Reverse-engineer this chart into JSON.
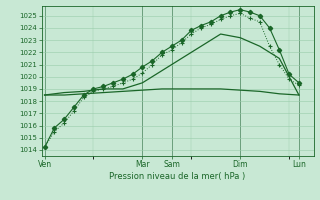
{
  "bg_color": "#c8e8d4",
  "line_color": "#1a6628",
  "grid_color": "#99ccaa",
  "vline_color": "#336644",
  "xlabel": "Pression niveau de la mer( hPa )",
  "ylim": [
    1013.5,
    1025.8
  ],
  "yticks": [
    1014,
    1015,
    1016,
    1017,
    1018,
    1019,
    1020,
    1021,
    1022,
    1023,
    1024,
    1025
  ],
  "day_labels": [
    "Ven",
    "Mar",
    "Sam",
    "Dim",
    "Lun"
  ],
  "day_positions": [
    0,
    10,
    13,
    20,
    26
  ],
  "xlim": [
    -0.3,
    27.5
  ],
  "series1_x": [
    0,
    1,
    2,
    3,
    4,
    5,
    6,
    7,
    8,
    9,
    10,
    11,
    12,
    13,
    14,
    15,
    16,
    17,
    18,
    19,
    20,
    21,
    22,
    23,
    24,
    25,
    26
  ],
  "series1_y": [
    1014.2,
    1015.8,
    1016.5,
    1017.5,
    1018.5,
    1019.0,
    1019.2,
    1019.5,
    1019.8,
    1020.2,
    1020.8,
    1021.3,
    1022.0,
    1022.5,
    1023.0,
    1023.8,
    1024.2,
    1024.5,
    1025.0,
    1025.3,
    1025.5,
    1025.3,
    1025.0,
    1024.0,
    1022.2,
    1020.2,
    1019.5
  ],
  "series2_x": [
    0,
    1,
    2,
    3,
    4,
    5,
    6,
    7,
    8,
    9,
    10,
    11,
    12,
    13,
    14,
    15,
    16,
    17,
    18,
    19,
    20,
    21,
    22,
    23,
    24,
    25,
    26
  ],
  "series2_y": [
    1014.2,
    1015.5,
    1016.2,
    1017.2,
    1018.3,
    1018.8,
    1019.0,
    1019.2,
    1019.5,
    1019.8,
    1020.3,
    1021.0,
    1021.8,
    1022.2,
    1022.8,
    1023.5,
    1024.0,
    1024.3,
    1024.7,
    1025.0,
    1025.2,
    1024.8,
    1024.5,
    1022.5,
    1021.0,
    1019.8,
    1019.3
  ],
  "series3_x": [
    0,
    2,
    4,
    6,
    8,
    10,
    12,
    14,
    16,
    18,
    20,
    22,
    24,
    26
  ],
  "series3_y": [
    1018.5,
    1018.7,
    1018.8,
    1019.0,
    1019.0,
    1019.5,
    1020.5,
    1021.5,
    1022.5,
    1023.5,
    1023.2,
    1022.5,
    1021.5,
    1018.5
  ],
  "series4_x": [
    0,
    2,
    4,
    6,
    8,
    10,
    12,
    14,
    16,
    18,
    20,
    22,
    24,
    26
  ],
  "series4_y": [
    1018.5,
    1018.5,
    1018.6,
    1018.7,
    1018.8,
    1018.9,
    1019.0,
    1019.0,
    1019.0,
    1019.0,
    1018.9,
    1018.8,
    1018.6,
    1018.5
  ]
}
